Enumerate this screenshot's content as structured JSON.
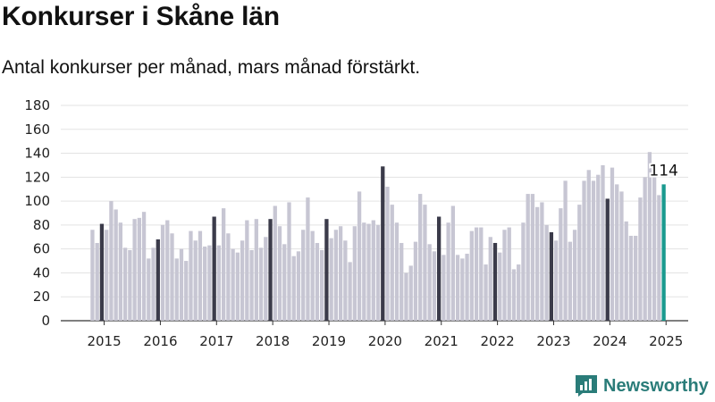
{
  "title": "Konkurser i Skåne län",
  "subtitle": "Antal konkurser per månad, mars månad förstärkt.",
  "brand": {
    "name": "Newsworthy",
    "icon": "newsworthy-logo-icon"
  },
  "colors": {
    "bar": "#c7c6d3",
    "highlight": "#3b3b4a",
    "latest": "#1a9a8f",
    "grid": "#e3e3e3",
    "brand": "#2a7c79"
  },
  "chart_data": {
    "type": "bar",
    "title": "Konkurser i Skåne län",
    "subtitle": "Antal konkurser per månad, mars månad förstärkt.",
    "xlabel": "",
    "ylabel": "",
    "ylim": [
      0,
      180
    ],
    "y_ticks": [
      0,
      20,
      40,
      60,
      80,
      100,
      120,
      140,
      160,
      180
    ],
    "grid": true,
    "x_tick_labels": [
      "2015",
      "2016",
      "2017",
      "2018",
      "2019",
      "2020",
      "2021",
      "2022",
      "2023",
      "2024",
      "2025"
    ],
    "highlight_month": "mars",
    "series": [
      {
        "year": "2015",
        "values": [
          76,
          65,
          81,
          76,
          100,
          93,
          82,
          61,
          59,
          85,
          86,
          91
        ]
      },
      {
        "year": "2016",
        "values": [
          52,
          61,
          68,
          80,
          84,
          73,
          52,
          60,
          50,
          75,
          67,
          75
        ]
      },
      {
        "year": "2017",
        "values": [
          62,
          63,
          87,
          63,
          94,
          73,
          60,
          57,
          67,
          84,
          59,
          85
        ]
      },
      {
        "year": "2018",
        "values": [
          61,
          70,
          85,
          96,
          79,
          64,
          99,
          54,
          58,
          76,
          103,
          75
        ]
      },
      {
        "year": "2019",
        "values": [
          65,
          59,
          85,
          69,
          76,
          79,
          67,
          49,
          79,
          108,
          82,
          81
        ]
      },
      {
        "year": "2020",
        "values": [
          84,
          80,
          129,
          112,
          97,
          82,
          65,
          40,
          46,
          66,
          106,
          97
        ]
      },
      {
        "year": "2021",
        "values": [
          64,
          58,
          87,
          55,
          82,
          96,
          55,
          52,
          56,
          75,
          78,
          78
        ]
      },
      {
        "year": "2022",
        "values": [
          47,
          70,
          65,
          57,
          76,
          78,
          43,
          47,
          82,
          106,
          106,
          95
        ]
      },
      {
        "year": "2023",
        "values": [
          99,
          80,
          74,
          67,
          94,
          117,
          66,
          76,
          97,
          117,
          126,
          117
        ]
      },
      {
        "year": "2024",
        "values": [
          122,
          130,
          102,
          128,
          114,
          108,
          83,
          71,
          71,
          103,
          120,
          141
        ]
      },
      {
        "year": "2025",
        "values": [
          124,
          105,
          114
        ]
      }
    ],
    "annotations": [
      {
        "label": "114",
        "year": "2025",
        "month": "mars"
      }
    ]
  }
}
